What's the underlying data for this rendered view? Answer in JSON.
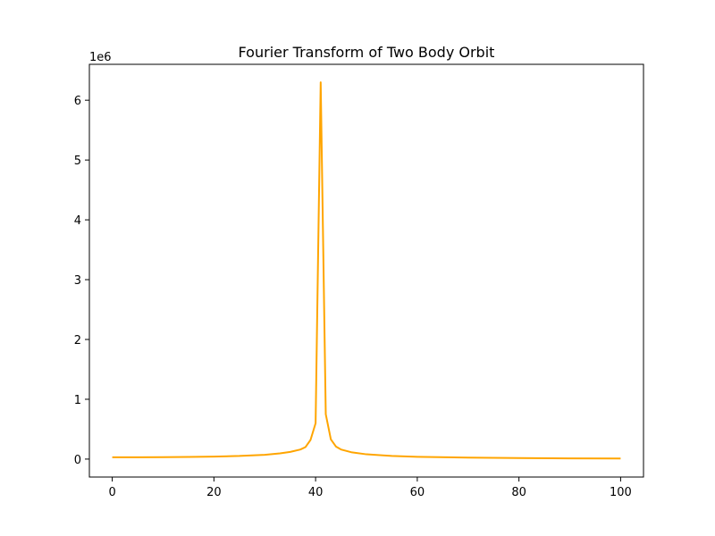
{
  "chart_data": {
    "type": "line",
    "title": "Fourier Transform of Two Body Orbit",
    "xlabel": "",
    "ylabel": "",
    "y_offset_label": "1e6",
    "xlim": [
      -4.5,
      104.5
    ],
    "ylim": [
      -300000,
      6600000
    ],
    "x_ticks": [
      0,
      20,
      40,
      60,
      80,
      100
    ],
    "y_ticks": [
      0,
      1000000,
      2000000,
      3000000,
      4000000,
      5000000,
      6000000
    ],
    "y_tick_labels": [
      "0",
      "1",
      "2",
      "3",
      "4",
      "5",
      "6"
    ],
    "grid": false,
    "series": [
      {
        "color": "#ffa500",
        "x": [
          0,
          5,
          10,
          15,
          20,
          25,
          30,
          33,
          35,
          37,
          38,
          39,
          40,
          41,
          42,
          43,
          44,
          45,
          47,
          50,
          55,
          60,
          70,
          80,
          90,
          100
        ],
        "y": [
          30000,
          30000,
          32000,
          36000,
          42000,
          52000,
          72000,
          95000,
          120000,
          160000,
          200000,
          320000,
          600000,
          6300000,
          750000,
          330000,
          210000,
          160000,
          115000,
          80000,
          52000,
          38000,
          25000,
          18000,
          12000,
          10000
        ]
      }
    ]
  }
}
